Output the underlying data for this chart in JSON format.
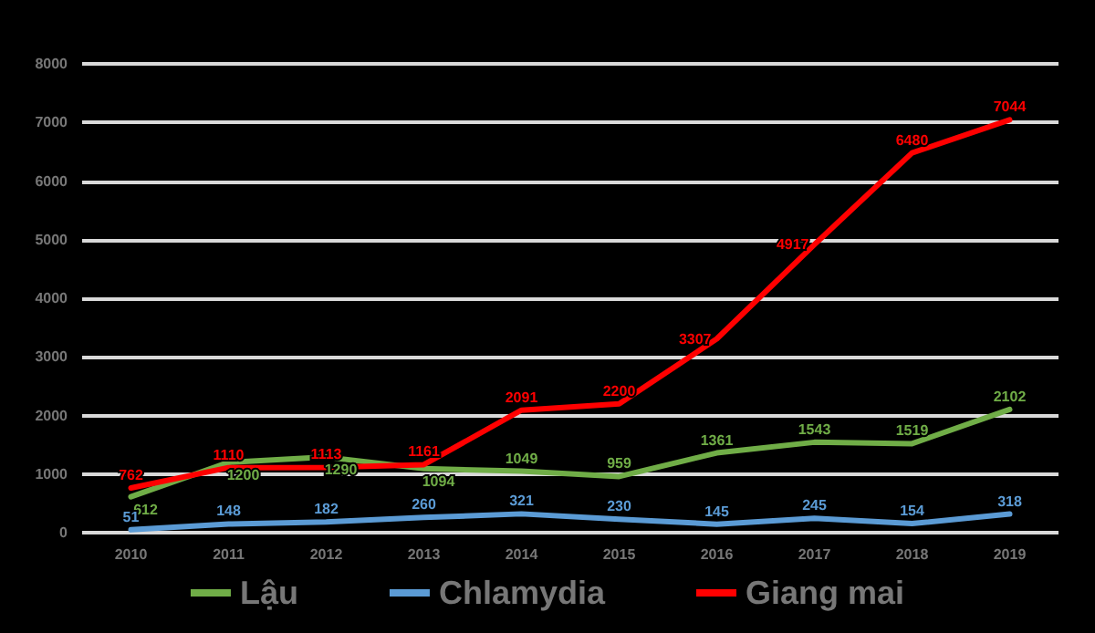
{
  "chart_data": {
    "type": "line",
    "categories": [
      "2010",
      "2011",
      "2012",
      "2013",
      "2014",
      "2015",
      "2016",
      "2017",
      "2018",
      "2019"
    ],
    "series": [
      {
        "name": "Lậu",
        "color": "#70ad47",
        "values": [
          612,
          1200,
          1290,
          1094,
          1049,
          959,
          1361,
          1543,
          1519,
          2102
        ]
      },
      {
        "name": "Chlamydia",
        "color": "#5b9bd5",
        "values": [
          51,
          148,
          182,
          260,
          321,
          230,
          145,
          245,
          154,
          318
        ]
      },
      {
        "name": "Giang mai",
        "color": "#ff0000",
        "values": [
          762,
          1110,
          1113,
          1161,
          2091,
          2200,
          3307,
          4917,
          6480,
          7044
        ]
      }
    ],
    "ylim": [
      0,
      8000
    ],
    "yticks": [
      0,
      1000,
      2000,
      3000,
      4000,
      5000,
      6000,
      7000,
      8000
    ],
    "grid": "y",
    "legend": "bottom",
    "data_labels": true,
    "marker": "none",
    "line_style": "solid"
  }
}
